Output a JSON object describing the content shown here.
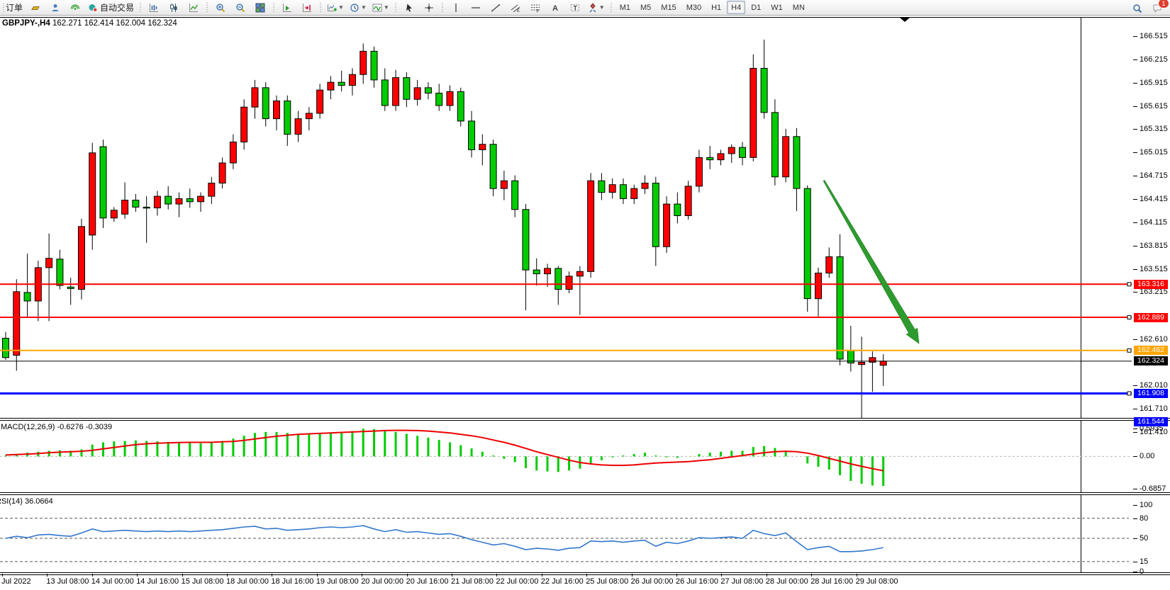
{
  "toolbar": {
    "groups": [
      {
        "name": "trade",
        "items": [
          {
            "name": "new-order-button",
            "icon": null,
            "label": "订单"
          },
          {
            "name": "gold-bar-button",
            "icon": "goldbar"
          },
          {
            "name": "account-button",
            "icon": "user"
          },
          {
            "name": "signal-button",
            "icon": "signal"
          },
          {
            "name": "autotrading-button",
            "icon": "autotrade",
            "label": "自动交易"
          }
        ]
      },
      {
        "name": "chart-type",
        "items": [
          {
            "name": "bar-chart-button",
            "icon": "bars"
          },
          {
            "name": "candlestick-chart-button",
            "icon": "candles"
          },
          {
            "name": "line-chart-button",
            "icon": "line"
          }
        ]
      },
      {
        "name": "zoom",
        "items": [
          {
            "name": "zoom-in-button",
            "icon": "zoomin"
          },
          {
            "name": "zoom-out-button",
            "icon": "zoomout"
          },
          {
            "name": "tile-windows-button",
            "icon": "tiles"
          }
        ]
      },
      {
        "name": "scroll-shift",
        "items": [
          {
            "name": "auto-scroll-button",
            "icon": "scroll"
          },
          {
            "name": "chart-shift-button",
            "icon": "shift"
          }
        ]
      },
      {
        "name": "objects",
        "items": [
          {
            "name": "new-chart-button",
            "icon": "newchart",
            "dropdown": true
          },
          {
            "name": "periods-button",
            "icon": "clock",
            "dropdown": true
          },
          {
            "name": "indicators-button",
            "icon": "indicator",
            "dropdown": true
          }
        ]
      },
      {
        "name": "cursor-tools",
        "items": [
          {
            "name": "cursor-button",
            "icon": "cursor"
          },
          {
            "name": "crosshair-button",
            "icon": "crosshair"
          }
        ]
      },
      {
        "name": "draw-tools",
        "items": [
          {
            "name": "vertical-line-button",
            "icon": "vline"
          },
          {
            "name": "horizontal-line-button",
            "icon": "hline"
          },
          {
            "name": "trendline-button",
            "icon": "trend"
          },
          {
            "name": "equidistant-channel-button",
            "icon": "channel"
          },
          {
            "name": "fibonacci-button",
            "icon": "fibo"
          },
          {
            "name": "text-button",
            "icon": "textA"
          },
          {
            "name": "label-button",
            "icon": "labelT"
          },
          {
            "name": "arrows-button",
            "icon": "shapes",
            "dropdown": true
          }
        ]
      }
    ],
    "timeframes": {
      "items": [
        "M1",
        "M5",
        "M15",
        "M30",
        "H1",
        "H4",
        "D1",
        "W1",
        "MN"
      ],
      "active": "H4"
    },
    "right_items": [
      {
        "name": "search-button",
        "icon": "search"
      },
      {
        "name": "chat-button",
        "icon": "chat",
        "badge": "1"
      }
    ]
  },
  "chart": {
    "title": "GBPJPY-,H4",
    "ohlc": "162.271 162.414 162.004 162.324",
    "macd_label": "MACD(12,26,9) -0.6276 -0.3039",
    "rsi_label": "RSI(14) 36.0664"
  },
  "chart_data": {
    "type": "candlestick",
    "symbol": "GBPJPY-",
    "timeframe": "H4",
    "last_bar": {
      "open": 162.271,
      "high": 162.414,
      "low": 162.004,
      "close": 162.324
    },
    "colors": {
      "bull": "#ff0000",
      "bear": "#00cc00",
      "wick": "#000000",
      "note": "red = up candle, green = down candle"
    },
    "price_axis": {
      "min": 161.41,
      "max": 166.515,
      "ticks": [
        "166.515",
        "166.215",
        "165.915",
        "165.615",
        "165.315",
        "165.015",
        "164.715",
        "164.415",
        "164.115",
        "163.815",
        "163.515",
        "163.215",
        "162.610",
        "162.010",
        "161.710",
        "161.410"
      ]
    },
    "hlines": [
      {
        "price": 163.316,
        "label": "163.316",
        "color": "#ff0000",
        "width": 2
      },
      {
        "price": 162.889,
        "label": "162.889",
        "color": "#ff0000",
        "width": 2
      },
      {
        "price": 162.462,
        "label": "162.462",
        "color": "#ffa500",
        "width": 2
      },
      {
        "price": 162.324,
        "label": "162.324",
        "color": "#000000",
        "width": 1,
        "bid_line": true
      },
      {
        "price": 161.908,
        "label": "161.908",
        "color": "#0000ff",
        "width": 3
      },
      {
        "price": 161.544,
        "label": "161.544",
        "color": "#0000ff",
        "width": 3
      }
    ],
    "candles": [
      [
        162.62,
        162.7,
        162.34,
        162.37
      ],
      [
        162.4,
        163.38,
        162.2,
        163.22
      ],
      [
        163.21,
        163.71,
        162.9,
        163.1
      ],
      [
        163.1,
        163.62,
        162.84,
        163.53
      ],
      [
        163.53,
        163.97,
        162.84,
        163.65
      ],
      [
        163.64,
        163.76,
        163.25,
        163.3
      ],
      [
        163.28,
        163.4,
        163.05,
        163.26
      ],
      [
        163.25,
        164.16,
        163.12,
        164.06
      ],
      [
        163.95,
        165.14,
        163.76,
        165.01
      ],
      [
        165.09,
        165.18,
        164.04,
        164.17
      ],
      [
        164.17,
        164.31,
        164.12,
        164.27
      ],
      [
        164.22,
        164.63,
        164.16,
        164.4
      ],
      [
        164.4,
        164.48,
        164.25,
        164.31
      ],
      [
        164.31,
        164.45,
        163.85,
        164.3
      ],
      [
        164.3,
        164.52,
        164.2,
        164.45
      ],
      [
        164.45,
        164.58,
        164.28,
        164.35
      ],
      [
        164.35,
        164.5,
        164.18,
        164.42
      ],
      [
        164.42,
        164.55,
        164.3,
        164.38
      ],
      [
        164.38,
        164.5,
        164.25,
        164.45
      ],
      [
        164.45,
        164.7,
        164.35,
        164.62
      ],
      [
        164.62,
        164.95,
        164.55,
        164.88
      ],
      [
        164.88,
        165.25,
        164.8,
        165.15
      ],
      [
        165.15,
        165.7,
        165.05,
        165.6
      ],
      [
        165.6,
        165.95,
        165.45,
        165.85
      ],
      [
        165.85,
        165.92,
        165.35,
        165.45
      ],
      [
        165.45,
        165.75,
        165.3,
        165.68
      ],
      [
        165.68,
        165.75,
        165.1,
        165.25
      ],
      [
        165.25,
        165.55,
        165.15,
        165.45
      ],
      [
        165.45,
        165.6,
        165.3,
        165.52
      ],
      [
        165.52,
        165.9,
        165.45,
        165.82
      ],
      [
        165.82,
        166.0,
        165.7,
        165.92
      ],
      [
        165.92,
        166.07,
        165.8,
        165.88
      ],
      [
        165.88,
        166.1,
        165.75,
        166.02
      ],
      [
        166.02,
        166.42,
        165.9,
        166.32
      ],
      [
        166.32,
        166.38,
        165.85,
        165.95
      ],
      [
        165.95,
        166.1,
        165.55,
        165.62
      ],
      [
        165.62,
        166.08,
        165.55,
        165.98
      ],
      [
        165.98,
        166.05,
        165.6,
        165.7
      ],
      [
        165.7,
        165.95,
        165.62,
        165.85
      ],
      [
        165.85,
        165.92,
        165.7,
        165.78
      ],
      [
        165.78,
        165.9,
        165.55,
        165.62
      ],
      [
        165.62,
        165.88,
        165.55,
        165.8
      ],
      [
        165.8,
        165.85,
        165.35,
        165.42
      ],
      [
        165.42,
        165.55,
        164.95,
        165.05
      ],
      [
        165.05,
        165.25,
        164.85,
        165.12
      ],
      [
        165.12,
        165.18,
        164.45,
        164.55
      ],
      [
        164.55,
        164.78,
        164.4,
        164.65
      ],
      [
        164.65,
        164.72,
        164.18,
        164.28
      ],
      [
        164.28,
        164.35,
        162.98,
        163.5
      ],
      [
        163.5,
        163.65,
        163.3,
        163.45
      ],
      [
        163.45,
        163.58,
        163.28,
        163.52
      ],
      [
        163.52,
        163.55,
        163.05,
        163.25
      ],
      [
        163.25,
        163.48,
        163.2,
        163.42
      ],
      [
        163.42,
        163.55,
        162.92,
        163.48
      ],
      [
        163.48,
        164.75,
        163.4,
        164.65
      ],
      [
        164.65,
        164.75,
        164.4,
        164.5
      ],
      [
        164.5,
        164.68,
        164.42,
        164.6
      ],
      [
        164.6,
        164.68,
        164.35,
        164.42
      ],
      [
        164.42,
        164.6,
        164.35,
        164.55
      ],
      [
        164.55,
        164.72,
        164.48,
        164.62
      ],
      [
        164.62,
        164.7,
        163.55,
        163.8
      ],
      [
        163.8,
        164.45,
        163.72,
        164.35
      ],
      [
        164.35,
        164.5,
        164.1,
        164.2
      ],
      [
        164.2,
        164.65,
        164.15,
        164.58
      ],
      [
        164.58,
        165.05,
        164.5,
        164.95
      ],
      [
        164.95,
        165.1,
        164.8,
        164.92
      ],
      [
        164.92,
        165.05,
        164.85,
        165.0
      ],
      [
        165.0,
        165.12,
        164.88,
        165.08
      ],
      [
        165.08,
        165.15,
        164.85,
        164.95
      ],
      [
        164.95,
        166.28,
        164.9,
        166.1
      ],
      [
        166.1,
        166.47,
        165.45,
        165.53
      ],
      [
        165.53,
        165.7,
        164.59,
        164.7
      ],
      [
        164.7,
        165.32,
        164.63,
        165.22
      ],
      [
        165.22,
        165.33,
        164.26,
        164.55
      ],
      [
        164.55,
        164.59,
        162.96,
        163.13
      ],
      [
        163.13,
        163.53,
        162.9,
        163.46
      ],
      [
        163.46,
        163.79,
        163.4,
        163.67
      ],
      [
        163.67,
        163.96,
        162.27,
        162.35
      ],
      [
        162.46,
        162.78,
        162.19,
        162.3
      ],
      [
        162.28,
        162.64,
        161.56,
        162.31
      ],
      [
        162.31,
        162.45,
        161.93,
        162.37
      ],
      [
        162.271,
        162.414,
        162.004,
        162.324
      ]
    ],
    "macd": {
      "params": "12,26,9",
      "value": -0.6276,
      "signal_value": -0.3039,
      "axis": [
        "0.5935",
        "0.00",
        "-0.6857"
      ],
      "axis_values": [
        0.5935,
        0,
        -0.6857
      ],
      "histogram": [
        0.02,
        0.05,
        0.08,
        0.1,
        0.12,
        0.13,
        0.12,
        0.15,
        0.25,
        0.3,
        0.32,
        0.33,
        0.34,
        0.33,
        0.32,
        0.31,
        0.3,
        0.29,
        0.28,
        0.3,
        0.33,
        0.38,
        0.44,
        0.5,
        0.52,
        0.52,
        0.5,
        0.48,
        0.47,
        0.48,
        0.5,
        0.52,
        0.54,
        0.59,
        0.58,
        0.55,
        0.52,
        0.48,
        0.44,
        0.4,
        0.35,
        0.3,
        0.24,
        0.17,
        0.1,
        0.02,
        -0.05,
        -0.12,
        -0.25,
        -0.3,
        -0.32,
        -0.33,
        -0.3,
        -0.26,
        -0.15,
        -0.08,
        -0.02,
        0.02,
        0.05,
        0.08,
        0.02,
        -0.02,
        -0.03,
        0.0,
        0.05,
        0.08,
        0.1,
        0.12,
        0.12,
        0.2,
        0.22,
        0.18,
        0.12,
        0.0,
        -0.15,
        -0.22,
        -0.28,
        -0.4,
        -0.52,
        -0.58,
        -0.62,
        -0.6276
      ],
      "signal": [
        0.03,
        0.04,
        0.05,
        0.06,
        0.08,
        0.09,
        0.1,
        0.11,
        0.13,
        0.16,
        0.19,
        0.22,
        0.25,
        0.27,
        0.28,
        0.29,
        0.295,
        0.3,
        0.3,
        0.3,
        0.31,
        0.32,
        0.34,
        0.37,
        0.4,
        0.43,
        0.45,
        0.47,
        0.48,
        0.49,
        0.5,
        0.51,
        0.52,
        0.53,
        0.54,
        0.55,
        0.555,
        0.555,
        0.55,
        0.54,
        0.52,
        0.5,
        0.47,
        0.44,
        0.4,
        0.35,
        0.3,
        0.24,
        0.17,
        0.1,
        0.04,
        -0.02,
        -0.08,
        -0.13,
        -0.16,
        -0.18,
        -0.19,
        -0.19,
        -0.18,
        -0.16,
        -0.14,
        -0.13,
        -0.12,
        -0.11,
        -0.09,
        -0.07,
        -0.04,
        -0.01,
        0.02,
        0.05,
        0.08,
        0.1,
        0.11,
        0.1,
        0.07,
        0.02,
        -0.04,
        -0.1,
        -0.16,
        -0.21,
        -0.26,
        -0.3039
      ]
    },
    "rsi": {
      "period": 14,
      "value": 36.0664,
      "levels": [
        80,
        50,
        15
      ],
      "axis": [
        "100",
        "80",
        "50",
        "15",
        "0"
      ],
      "axis_values": [
        100,
        80,
        50,
        15,
        0
      ],
      "values": [
        50,
        53,
        51,
        55,
        56,
        54,
        53,
        58,
        64,
        60,
        61,
        62,
        61,
        60,
        61,
        60,
        61,
        60,
        61,
        62,
        63,
        65,
        67,
        68,
        64,
        65,
        62,
        63,
        64,
        66,
        67,
        66,
        67,
        69,
        64,
        60,
        63,
        59,
        60,
        58,
        56,
        57,
        53,
        48,
        44,
        40,
        42,
        38,
        33,
        35,
        34,
        32,
        35,
        36,
        46,
        45,
        46,
        44,
        46,
        47,
        38,
        44,
        42,
        46,
        51,
        50,
        51,
        52,
        50,
        62,
        57,
        54,
        58,
        45,
        33,
        36,
        38,
        30,
        30,
        31,
        33,
        36.07
      ]
    },
    "time_axis": {
      "labels": [
        "Jul 2022",
        "13 Jul 08:00",
        "14 Jul 00:00",
        "14 Jul 16:00",
        "15 Jul 08:00",
        "18 Jul 00:00",
        "18 Jul 16:00",
        "19 Jul 08:00",
        "20 Jul 00:00",
        "20 Jul 16:00",
        "21 Jul 08:00",
        "22 Jul 00:00",
        "22 Jul 16:00",
        "25 Jul 08:00",
        "26 Jul 00:00",
        "26 Jul 16:00",
        "27 Jul 08:00",
        "28 Jul 00:00",
        "28 Jul 16:00",
        "29 Jul 08:00"
      ]
    },
    "annotation_arrow": {
      "from": [
        1162,
        233
      ],
      "to": [
        1296,
        463
      ],
      "color": "#2e9b2e"
    }
  }
}
